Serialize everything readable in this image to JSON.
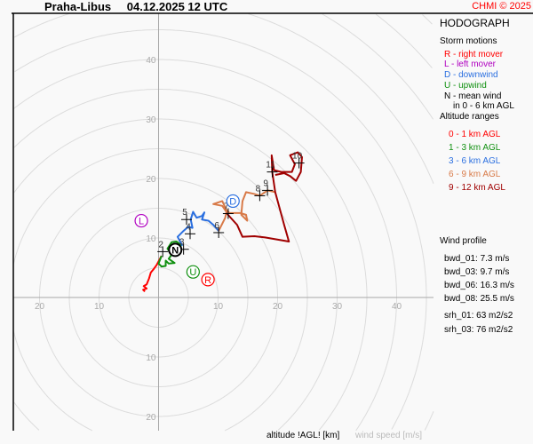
{
  "header": {
    "station": "Praha-Libus",
    "datetime": "04.12.2025 12 UTC",
    "copyright": "CHMI © 2025"
  },
  "panel": {
    "title": "HODOGRAPH",
    "storm_motions_title": "Storm motions",
    "storm_legend": [
      {
        "text": "R - right mover",
        "color": "#ff0000"
      },
      {
        "text": "L - left mover",
        "color": "#b000c0"
      },
      {
        "text": "D - downwind",
        "color": "#2a6fe0"
      },
      {
        "text": "U - upwind",
        "color": "#109010"
      },
      {
        "text": "N - mean wind",
        "color": "#000000"
      },
      {
        "text": "in 0 - 6 km AGL",
        "color": "#000000"
      }
    ],
    "altitude_title": "Altitude ranges",
    "altitude_legend": [
      {
        "text": "0 - 1 km AGL",
        "color": "#ff0000"
      },
      {
        "text": "1 - 3 km AGL",
        "color": "#109010"
      },
      {
        "text": "3 - 6 km AGL",
        "color": "#2a6fe0"
      },
      {
        "text": "6 - 9 km AGL",
        "color": "#d87a48"
      },
      {
        "text": "9 - 12 km AGL",
        "color": "#a00000"
      }
    ],
    "wind_profile_title": "Wind profile",
    "wind_profile": [
      "bwd_01: 7.3 m/s",
      "bwd_03: 9.7 m/s",
      "bwd_06: 16.3 m/s",
      "bwd_08: 25.5 m/s"
    ],
    "helicity": [
      "srh_01: 63 m2/s2",
      "srh_03: 76 m2/s2"
    ]
  },
  "footer": {
    "altitude_label": "altitude !AGL! [km]",
    "speed_label": "wind speed [m/s]"
  },
  "chart_data": {
    "type": "line",
    "title": "HODOGRAPH",
    "xlabel": "wind speed [m/s]",
    "ylabel": "",
    "ring_step": 5,
    "grid": true,
    "tick_labels": {
      "up": [
        "10",
        "20",
        "30",
        "40"
      ],
      "down": [
        "10",
        "20"
      ],
      "left": [
        "10",
        "20"
      ],
      "right": [
        "10",
        "20",
        "30",
        "40"
      ]
    },
    "tick_values": {
      "up": [
        10,
        20,
        30,
        40
      ],
      "down": [
        10,
        20
      ],
      "left": [
        10,
        20
      ],
      "right": [
        10,
        20,
        30,
        40
      ]
    },
    "series": [
      {
        "name": "0 - 1 km AGL",
        "color": "#ff0000",
        "points": [
          [
            -2.3,
            1.0
          ],
          [
            -2.6,
            1.3
          ],
          [
            -2.0,
            1.5
          ],
          [
            -2.5,
            1.9
          ],
          [
            -2.0,
            2.2
          ],
          [
            -1.6,
            3.2
          ],
          [
            -1.3,
            4.2
          ],
          [
            -0.8,
            4.8
          ],
          [
            -0.3,
            5.5
          ],
          [
            0.5,
            7.0
          ]
        ]
      },
      {
        "name": "1 - 3 km AGL",
        "color": "#109010",
        "points": [
          [
            0.5,
            7.0
          ],
          [
            0,
            5.7
          ],
          [
            0.5,
            5.2
          ],
          [
            1.2,
            5.3
          ],
          [
            1.2,
            6.2
          ],
          [
            1.7,
            5.7
          ],
          [
            2.7,
            5.8
          ],
          [
            1.7,
            6.5
          ],
          [
            2.2,
            7.2
          ],
          [
            1.5,
            8.2
          ],
          [
            2.2,
            9.3
          ],
          [
            3.0,
            9.4
          ],
          [
            4.0,
            8.7
          ]
        ]
      },
      {
        "name": "3 - 6 km AGL",
        "color": "#2a6fe0",
        "points": [
          [
            4.0,
            8.7
          ],
          [
            3.2,
            10.2
          ],
          [
            4.2,
            11.2
          ],
          [
            5.0,
            11.9
          ],
          [
            5.7,
            11.7
          ],
          [
            5.4,
            13.1
          ],
          [
            5.8,
            14.4
          ],
          [
            6.4,
            13.4
          ],
          [
            7.3,
            13.7
          ],
          [
            7.7,
            14.3
          ],
          [
            7.3,
            13.1
          ],
          [
            8.4,
            12.9
          ],
          [
            9.2,
            12.2
          ],
          [
            10.1,
            11.2
          ]
        ]
      },
      {
        "name": "6 - 9 km AGL",
        "color": "#d87a48",
        "points": [
          [
            10.1,
            11.2
          ],
          [
            11.2,
            13.4
          ],
          [
            11.4,
            14.4
          ],
          [
            10.7,
            15.4
          ],
          [
            9.2,
            15.7
          ],
          [
            10.7,
            16.2
          ],
          [
            11.4,
            14.7
          ],
          [
            11.9,
            14.2
          ],
          [
            13.7,
            14.2
          ],
          [
            14.7,
            13.9
          ],
          [
            14.9,
            12.9
          ],
          [
            13.9,
            13.9
          ],
          [
            14.1,
            16.2
          ],
          [
            14.7,
            17.7
          ],
          [
            16.1,
            17.4
          ],
          [
            17.0,
            17.1
          ],
          [
            18.3,
            18.0
          ],
          [
            19.6,
            17.7
          ]
        ]
      },
      {
        "name": "9 - 12 km AGL",
        "color": "#a00000",
        "points": [
          [
            11.4,
            14.2
          ],
          [
            13.2,
            12.2
          ],
          [
            14.1,
            10.2
          ],
          [
            16.1,
            10.3
          ],
          [
            17.9,
            10.1
          ],
          [
            21.9,
            9.4
          ],
          [
            21.1,
            12.2
          ],
          [
            19.6,
            17.7
          ],
          [
            19.1,
            21.1
          ],
          [
            19.0,
            23.9
          ],
          [
            19.4,
            21.4
          ],
          [
            20.6,
            21.1
          ],
          [
            22.4,
            21.1
          ],
          [
            22.9,
            22.4
          ],
          [
            22.1,
            23.9
          ],
          [
            23.4,
            24.4
          ],
          [
            24.1,
            23.6
          ],
          [
            23.9,
            21.1
          ],
          [
            23.1,
            19.6
          ],
          [
            22.1,
            20.4
          ],
          [
            21.1,
            20.9
          ],
          [
            19.6,
            20.6
          ]
        ]
      }
    ],
    "altitude_markers": [
      {
        "label": "2",
        "u": 0.7,
        "v": 7.7
      },
      {
        "label": "3",
        "u": 4.2,
        "v": 8.1
      },
      {
        "label": "4",
        "u": 5.3,
        "v": 10.7
      },
      {
        "label": "5",
        "u": 4.7,
        "v": 13.1
      },
      {
        "label": "6",
        "u": 10.1,
        "v": 10.9
      },
      {
        "label": "7",
        "u": 11.7,
        "v": 14.1
      },
      {
        "label": "8",
        "u": 17.0,
        "v": 17.1
      },
      {
        "label": "9",
        "u": 18.3,
        "v": 18.0
      },
      {
        "label": "10",
        "u": 23.6,
        "v": 22.6
      },
      {
        "label": "11",
        "u": 19.1,
        "v": 21.1
      }
    ],
    "storm_motions": [
      {
        "label": "N",
        "u": 2.8,
        "v": 8.0,
        "color": "#000000"
      },
      {
        "label": "D",
        "u": 12.5,
        "v": 16.2,
        "color": "#2a6fe0"
      },
      {
        "label": "L",
        "u": -2.9,
        "v": 12.9,
        "color": "#b000c0"
      },
      {
        "label": "U",
        "u": 5.8,
        "v": 4.3,
        "color": "#109010"
      },
      {
        "label": "R",
        "u": 8.3,
        "v": 3.0,
        "color": "#ff0000"
      }
    ]
  }
}
